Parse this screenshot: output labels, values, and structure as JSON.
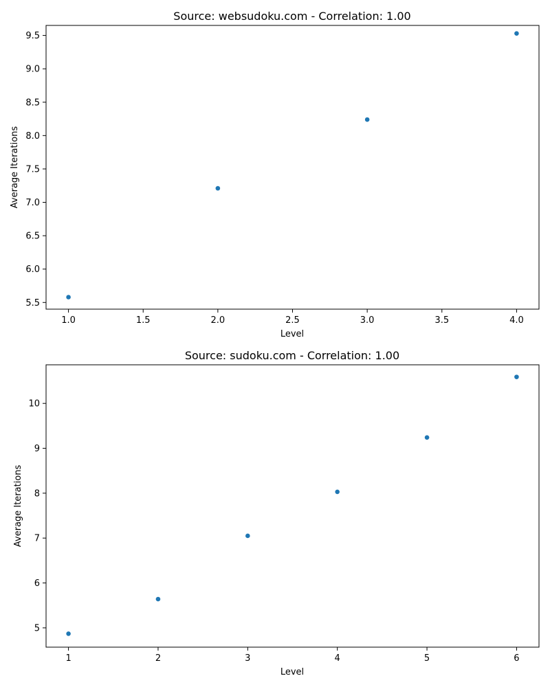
{
  "chart_data": [
    {
      "type": "scatter",
      "title": "Source: websudoku.com - Correlation: 1.00",
      "xlabel": "Level",
      "ylabel": "Average Iterations",
      "xlim": [
        0.85,
        4.15
      ],
      "ylim": [
        5.4,
        9.65
      ],
      "xticks": [
        1.0,
        1.5,
        2.0,
        2.5,
        3.0,
        3.5,
        4.0
      ],
      "xtick_labels": [
        "1.0",
        "1.5",
        "2.0",
        "2.5",
        "3.0",
        "3.5",
        "4.0"
      ],
      "yticks": [
        5.5,
        6.0,
        6.5,
        7.0,
        7.5,
        8.0,
        8.5,
        9.0,
        9.5
      ],
      "ytick_labels": [
        "5.5",
        "6.0",
        "6.5",
        "7.0",
        "7.5",
        "8.0",
        "8.5",
        "9.0",
        "9.5"
      ],
      "grid": false,
      "marker_color": "#1f77b4",
      "series": [
        {
          "points": [
            {
              "x": 1,
              "y": 5.58
            },
            {
              "x": 2,
              "y": 7.21
            },
            {
              "x": 3,
              "y": 8.24
            },
            {
              "x": 4,
              "y": 9.53
            }
          ]
        }
      ]
    },
    {
      "type": "scatter",
      "title": "Source: sudoku.com - Correlation: 1.00",
      "xlabel": "Level",
      "ylabel": "Average Iterations",
      "xlim": [
        0.75,
        6.25
      ],
      "ylim": [
        4.57,
        10.86
      ],
      "xticks": [
        1,
        2,
        3,
        4,
        5,
        6
      ],
      "xtick_labels": [
        "1",
        "2",
        "3",
        "4",
        "5",
        "6"
      ],
      "yticks": [
        5,
        6,
        7,
        8,
        9,
        10
      ],
      "ytick_labels": [
        "5",
        "6",
        "7",
        "8",
        "9",
        "10"
      ],
      "grid": false,
      "marker_color": "#1f77b4",
      "series": [
        {
          "points": [
            {
              "x": 1,
              "y": 4.87
            },
            {
              "x": 2,
              "y": 5.64
            },
            {
              "x": 3,
              "y": 7.05
            },
            {
              "x": 4,
              "y": 8.03
            },
            {
              "x": 5,
              "y": 9.24
            },
            {
              "x": 6,
              "y": 10.59
            }
          ]
        }
      ]
    }
  ]
}
